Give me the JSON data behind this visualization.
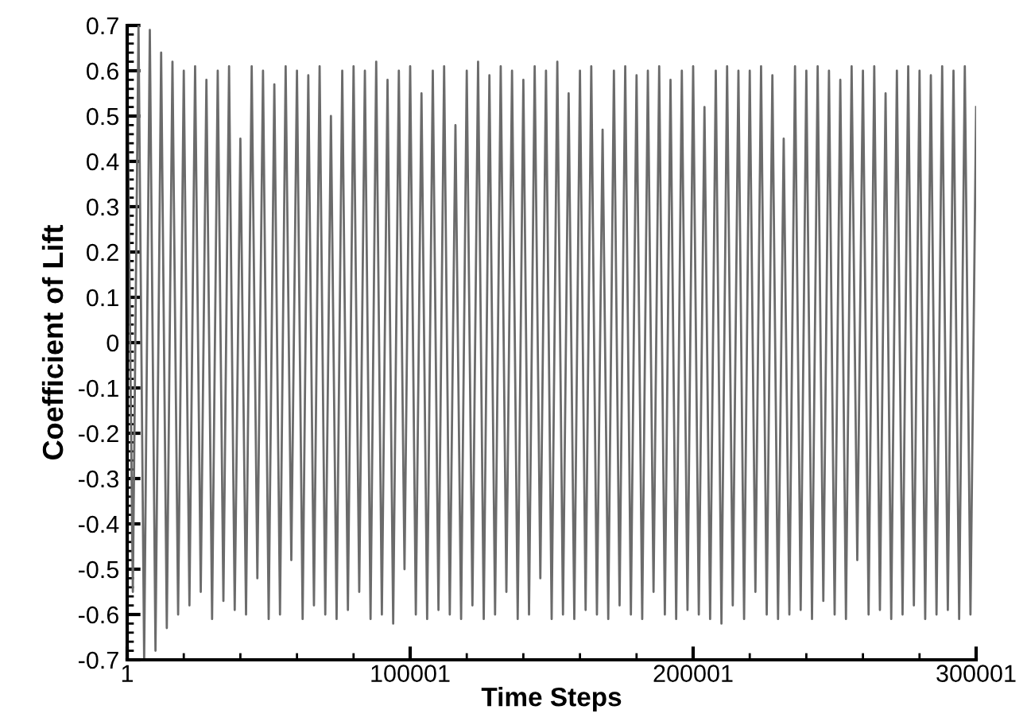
{
  "chart_data": {
    "type": "line",
    "xlabel": "Time Steps",
    "ylabel": "Coefficient of Lift",
    "xlim": [
      1,
      300001
    ],
    "xticks": [
      1,
      100001,
      200001,
      300001
    ],
    "ylim": [
      -0.7,
      0.7
    ],
    "yticks": [
      {
        "value": -0.7,
        "label": "-0.7"
      },
      {
        "value": -0.6,
        "label": "-0.6"
      },
      {
        "value": -0.5,
        "label": "-0.5"
      },
      {
        "value": -0.4,
        "label": "-0.4"
      },
      {
        "value": -0.3,
        "label": "-0.3"
      },
      {
        "value": -0.2,
        "label": "-0.2"
      },
      {
        "value": -0.1,
        "label": "-0.1"
      },
      0,
      0.1,
      0.2,
      0.3,
      0.4,
      0.5,
      0.6,
      0.7
    ],
    "grid": false,
    "marker": "none",
    "line_style": "solid",
    "series": [
      {
        "color": "#6b6b6b",
        "x": [
          1,
          2001,
          4001,
          6001,
          8001,
          10001,
          12001,
          14001,
          16001,
          18001,
          20001,
          22001,
          24001,
          26001,
          28001,
          30001,
          32001,
          34001,
          36001,
          38001,
          40001,
          42001,
          44001,
          46001,
          48001,
          50001,
          52001,
          54001,
          56001,
          58001,
          60001,
          62001,
          64001,
          66001,
          68001,
          70001,
          72001,
          74001,
          76001,
          78001,
          80001,
          82001,
          84001,
          86001,
          88001,
          90001,
          92001,
          94001,
          96001,
          98001,
          100001,
          102001,
          104001,
          106001,
          108001,
          110001,
          112001,
          114001,
          116001,
          118001,
          120001,
          122001,
          124001,
          126001,
          128001,
          130001,
          132001,
          134001,
          136001,
          138001,
          140001,
          142001,
          144001,
          146001,
          148001,
          150001,
          152001,
          154001,
          156001,
          158001,
          160001,
          162001,
          164001,
          166001,
          168001,
          170001,
          172001,
          174001,
          176001,
          178001,
          180001,
          182001,
          184001,
          186001,
          188001,
          190001,
          192001,
          194001,
          196001,
          198001,
          200001,
          202001,
          204001,
          206001,
          208001,
          210001,
          212001,
          214001,
          216001,
          218001,
          220001,
          222001,
          224001,
          226001,
          228001,
          230001,
          232001,
          234001,
          236001,
          238001,
          240001,
          242001,
          244001,
          246001,
          248001,
          250001,
          252001,
          254001,
          256001,
          258001,
          260001,
          262001,
          264001,
          266001,
          268001,
          270001,
          272001,
          274001,
          276001,
          278001,
          280001,
          282001,
          284001,
          286001,
          288001,
          290001,
          292001,
          294001,
          296001,
          298001,
          300001
        ],
        "values": [
          0.62,
          -0.55,
          0.7,
          -0.7,
          0.69,
          -0.68,
          0.64,
          -0.63,
          0.62,
          -0.6,
          0.6,
          -0.58,
          0.61,
          -0.55,
          0.58,
          -0.61,
          0.6,
          -0.57,
          0.61,
          -0.59,
          0.45,
          -0.6,
          0.61,
          -0.52,
          0.6,
          -0.61,
          0.57,
          -0.6,
          0.61,
          -0.48,
          0.6,
          -0.61,
          0.59,
          -0.58,
          0.61,
          -0.6,
          0.5,
          -0.61,
          0.6,
          -0.59,
          0.61,
          -0.55,
          0.6,
          -0.61,
          0.62,
          -0.6,
          0.58,
          -0.62,
          0.6,
          -0.5,
          0.61,
          -0.6,
          0.55,
          -0.61,
          0.6,
          -0.59,
          0.61,
          -0.6,
          0.48,
          -0.61,
          0.6,
          -0.58,
          0.62,
          -0.61,
          0.59,
          -0.6,
          0.61,
          -0.55,
          0.6,
          -0.61,
          0.58,
          -0.6,
          0.61,
          -0.52,
          0.6,
          -0.61,
          0.62,
          -0.6,
          0.55,
          -0.61,
          0.6,
          -0.59,
          0.61,
          -0.6,
          0.47,
          -0.61,
          0.6,
          -0.58,
          0.61,
          -0.6,
          0.59,
          -0.61,
          0.6,
          -0.55,
          0.61,
          -0.6,
          0.58,
          -0.61,
          0.6,
          -0.59,
          0.61,
          -0.6,
          0.52,
          -0.61,
          0.6,
          -0.62,
          0.61,
          -0.58,
          0.6,
          -0.61,
          0.6,
          -0.55,
          0.61,
          -0.6,
          0.59,
          -0.61,
          0.45,
          -0.6,
          0.61,
          -0.59,
          0.6,
          -0.61,
          0.61,
          -0.57,
          0.6,
          -0.6,
          0.58,
          -0.61,
          0.61,
          -0.48,
          0.6,
          -0.6,
          0.61,
          -0.59,
          0.55,
          -0.61,
          0.6,
          -0.6,
          0.61,
          -0.58,
          0.6,
          -0.61,
          0.59,
          -0.6,
          0.61,
          -0.59,
          0.6,
          -0.61,
          0.61,
          -0.6,
          0.52
        ]
      }
    ]
  }
}
